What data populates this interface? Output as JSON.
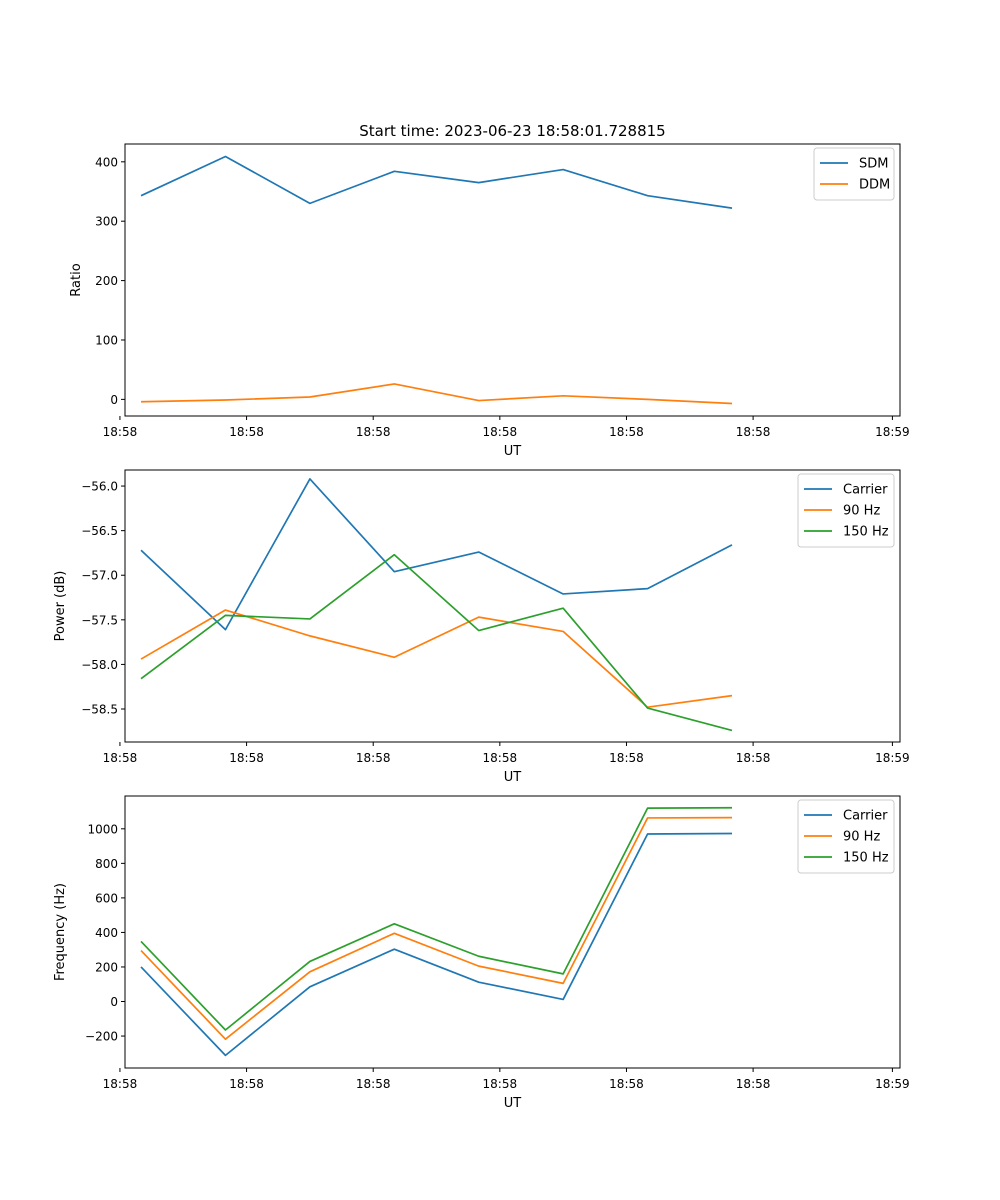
{
  "figure_title": "Start time: 2023-06-23 18:58:01.728815",
  "chart_data": [
    {
      "type": "line",
      "title": "Start time: 2023-06-23 18:58:01.728815",
      "xlabel": "UT",
      "ylabel": "Ratio",
      "x_tick_labels": [
        "18:58",
        "18:58",
        "18:58",
        "18:58",
        "18:58",
        "18:58",
        "18:59"
      ],
      "xlim_index": [
        -0.19,
        8.99
      ],
      "ylim": [
        -28,
        430
      ],
      "y_ticks": [
        0,
        100,
        200,
        300,
        400
      ],
      "y_tick_labels": [
        "0",
        "100",
        "200",
        "300",
        "400"
      ],
      "legend_position": "top-right",
      "grid": false,
      "series": [
        {
          "name": "SDM",
          "color": "#1f77b4",
          "values": [
            343,
            409,
            330,
            384,
            365,
            387,
            343,
            322
          ]
        },
        {
          "name": "DDM",
          "color": "#ff7f0e",
          "values": [
            -4,
            -1,
            4,
            26,
            -2,
            6,
            0,
            -7
          ]
        }
      ]
    },
    {
      "type": "line",
      "title": "",
      "xlabel": "UT",
      "ylabel": "Power (dB)",
      "x_tick_labels": [
        "18:58",
        "18:58",
        "18:58",
        "18:58",
        "18:58",
        "18:58",
        "18:59"
      ],
      "xlim_index": [
        -0.19,
        8.99
      ],
      "ylim": [
        -58.87,
        -55.82
      ],
      "y_ticks": [
        -56.0,
        -56.5,
        -57.0,
        -57.5,
        -58.0,
        -58.5
      ],
      "y_tick_labels": [
        "−56.0",
        "−56.5",
        "−57.0",
        "−57.5",
        "−58.0",
        "−58.5"
      ],
      "legend_position": "top-right",
      "grid": false,
      "series": [
        {
          "name": "Carrier",
          "color": "#1f77b4",
          "values": [
            -56.72,
            -57.61,
            -55.92,
            -56.96,
            -56.74,
            -57.21,
            -57.15,
            -56.66
          ]
        },
        {
          "name": "90 Hz",
          "color": "#ff7f0e",
          "values": [
            -57.94,
            -57.39,
            -57.68,
            -57.92,
            -57.47,
            -57.63,
            -58.48,
            -58.35
          ]
        },
        {
          "name": "150 Hz",
          "color": "#2ca02c",
          "values": [
            -58.16,
            -57.45,
            -57.49,
            -56.77,
            -57.62,
            -57.37,
            -58.49,
            -58.74
          ]
        }
      ]
    },
    {
      "type": "line",
      "title": "",
      "xlabel": "UT",
      "ylabel": "Frequency (Hz)",
      "x_tick_labels": [
        "18:58",
        "18:58",
        "18:58",
        "18:58",
        "18:58",
        "18:58",
        "18:59"
      ],
      "xlim_index": [
        -0.19,
        8.99
      ],
      "ylim": [
        -385,
        1190
      ],
      "y_ticks": [
        -200,
        0,
        200,
        400,
        600,
        800,
        1000
      ],
      "y_tick_labels": [
        "−200",
        "0",
        "200",
        "400",
        "600",
        "800",
        "1000"
      ],
      "legend_position": "top-right",
      "grid": false,
      "series": [
        {
          "name": "Carrier",
          "color": "#1f77b4",
          "values": [
            200,
            -312,
            85,
            303,
            112,
            12,
            970,
            973
          ]
        },
        {
          "name": "90 Hz",
          "color": "#ff7f0e",
          "values": [
            295,
            -218,
            172,
            395,
            205,
            105,
            1063,
            1065
          ]
        },
        {
          "name": "150 Hz",
          "color": "#2ca02c",
          "values": [
            348,
            -165,
            232,
            450,
            262,
            160,
            1120,
            1122
          ]
        }
      ]
    }
  ]
}
